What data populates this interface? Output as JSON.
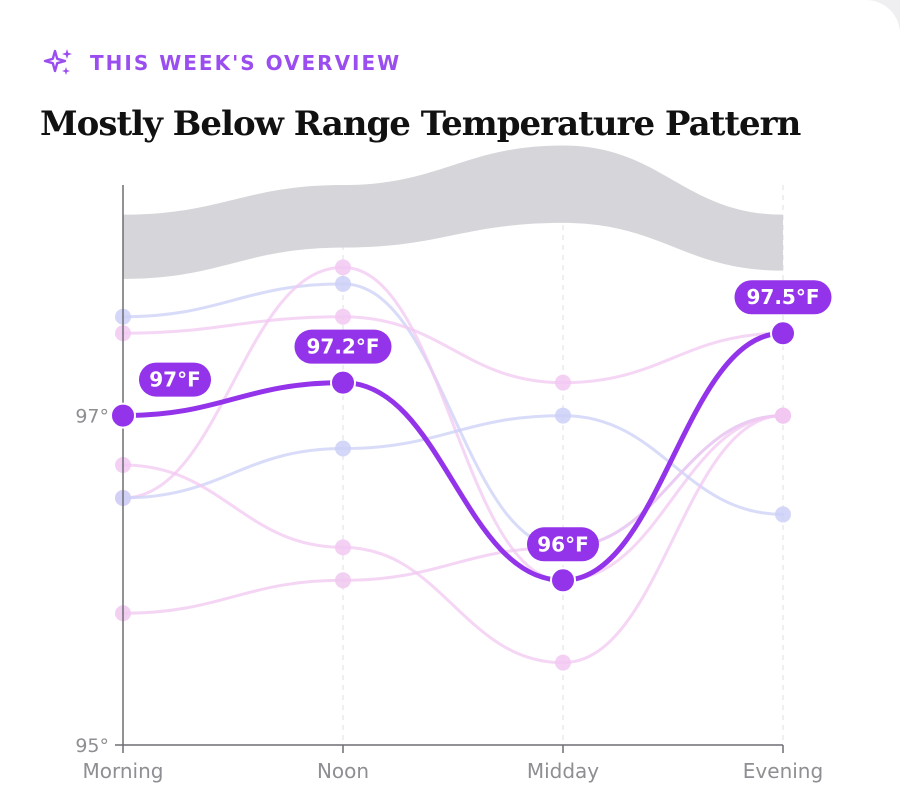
{
  "header": {
    "eyebrow": "THIS WEEK'S OVERVIEW",
    "eyebrow_icon": "sparkles-icon",
    "title": "Mostly Below Range Temperature Pattern"
  },
  "chart_data": {
    "type": "line",
    "categories": [
      "Morning",
      "Noon",
      "Midday",
      "Evening"
    ],
    "ylim": [
      95,
      98.4
    ],
    "y_ticks": [
      {
        "value": 95,
        "label": "95°"
      },
      {
        "value": 97,
        "label": "97°"
      }
    ],
    "normal_range": {
      "low": [
        97.83,
        98.02,
        98.17,
        97.88
      ],
      "high": [
        98.22,
        98.4,
        98.64,
        98.22
      ]
    },
    "highlight_series": {
      "values": [
        97.0,
        97.2,
        96.0,
        97.5
      ],
      "labels": [
        "97°F",
        "97.2°F",
        "96°F",
        "97.5°F"
      ],
      "color": "#9333ea"
    },
    "background_series": [
      {
        "values": [
          97.6,
          97.8,
          96.2,
          97.0
        ],
        "color": "#ccd0f7"
      },
      {
        "values": [
          97.5,
          97.6,
          97.2,
          97.5
        ],
        "color": "#f2c8f2"
      },
      {
        "values": [
          96.5,
          97.9,
          96.0,
          97.0
        ],
        "color": "#f2c8f2"
      },
      {
        "values": [
          96.5,
          96.8,
          97.0,
          96.4
        ],
        "color": "#ccd0f7"
      },
      {
        "values": [
          95.8,
          96.0,
          96.2,
          97.0
        ],
        "color": "#f0c8f0"
      },
      {
        "values": [
          96.7,
          96.2,
          95.5,
          97.0
        ],
        "color": "#f2c8f2"
      }
    ],
    "grid": "vertical dashed at categories",
    "colors": {
      "range_band": "#d6d6da",
      "axis": "#6e6e73",
      "tick_text": "#8e8e93"
    }
  }
}
